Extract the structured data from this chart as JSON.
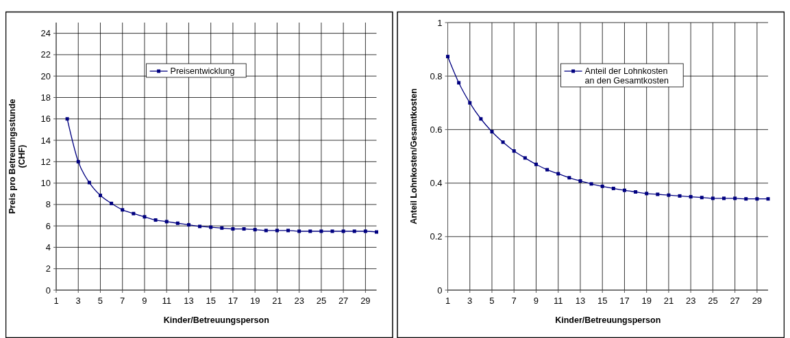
{
  "chart_data": [
    {
      "type": "line",
      "xlabel": "Kinder/Betreuungsperson",
      "ylabel": "Preis pro Betreuungsstunde (CHF)",
      "x": [
        2,
        3,
        4,
        5,
        6,
        7,
        8,
        9,
        10,
        11,
        12,
        13,
        14,
        15,
        16,
        17,
        18,
        19,
        20,
        21,
        22,
        23,
        24,
        25,
        26,
        27,
        28,
        29,
        30
      ],
      "series": [
        {
          "name": "Preisentwicklung",
          "color": "#000080",
          "values": [
            16,
            12,
            10.05,
            8.85,
            8.1,
            7.5,
            7.15,
            6.85,
            6.55,
            6.4,
            6.25,
            6.1,
            5.95,
            5.88,
            5.8,
            5.72,
            5.72,
            5.65,
            5.57,
            5.57,
            5.57,
            5.5,
            5.5,
            5.5,
            5.5,
            5.5,
            5.5,
            5.5,
            5.43
          ]
        }
      ],
      "xlim": [
        1,
        30
      ],
      "xticks": [
        1,
        3,
        5,
        7,
        9,
        11,
        13,
        15,
        17,
        19,
        21,
        23,
        25,
        27,
        29
      ],
      "ylim": [
        0,
        25
      ],
      "yticks": [
        0,
        2,
        4,
        6,
        8,
        10,
        12,
        14,
        16,
        18,
        20,
        22,
        24
      ],
      "grid": true,
      "legend": "top",
      "marker": "square"
    },
    {
      "type": "line",
      "xlabel": "Kinder/Betreuungsperson",
      "ylabel": "Anteil Lohnkosten/Gesamtkosten",
      "x": [
        1,
        2,
        3,
        4,
        5,
        6,
        7,
        8,
        9,
        10,
        11,
        12,
        13,
        14,
        15,
        16,
        17,
        18,
        19,
        20,
        21,
        22,
        23,
        24,
        25,
        26,
        27,
        28,
        29,
        30
      ],
      "series": [
        {
          "name": "Anteil der Lohnkosten an den Gesamtkosten",
          "color": "#000080",
          "values": [
            0.873,
            0.775,
            0.7,
            0.64,
            0.592,
            0.553,
            0.52,
            0.494,
            0.47,
            0.45,
            0.435,
            0.42,
            0.408,
            0.397,
            0.388,
            0.38,
            0.373,
            0.367,
            0.361,
            0.358,
            0.355,
            0.352,
            0.349,
            0.346,
            0.343,
            0.343,
            0.343,
            0.341,
            0.341,
            0.341
          ]
        }
      ],
      "xlim": [
        1,
        30
      ],
      "xticks": [
        1,
        3,
        5,
        7,
        9,
        11,
        13,
        15,
        17,
        19,
        21,
        23,
        25,
        27,
        29
      ],
      "ylim": [
        0,
        1
      ],
      "yticks": [
        0,
        0.2,
        0.4,
        0.6,
        0.8,
        1
      ],
      "grid": true,
      "legend": "top",
      "marker": "square"
    }
  ]
}
